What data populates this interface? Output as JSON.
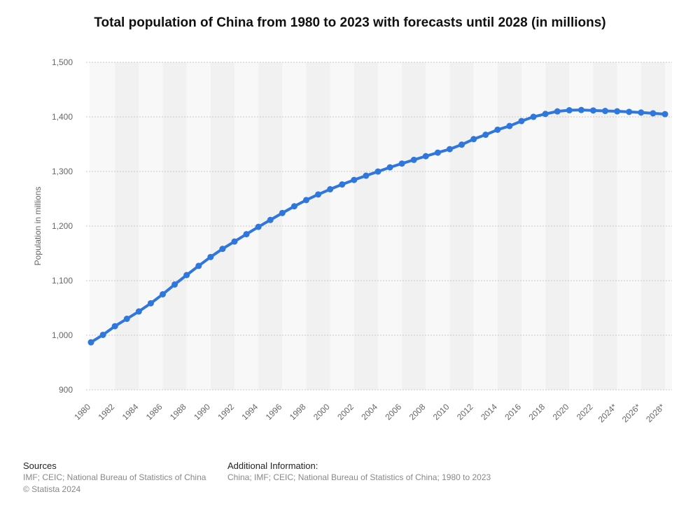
{
  "chart_data": {
    "type": "line",
    "title": "Total population of China from 1980 to 2023 with forecasts until 2028 (in millions)",
    "ylabel": "Population in millions",
    "xlabel": "",
    "ylim": [
      900,
      1500
    ],
    "yticks": [
      900,
      1000,
      1100,
      1200,
      1300,
      1400,
      1500
    ],
    "ytick_labels": [
      "900",
      "1,000",
      "1,100",
      "1,200",
      "1,300",
      "1,400",
      "1,500"
    ],
    "grid": true,
    "color": "#2f76dd",
    "categories": [
      "1980",
      "1981",
      "1982",
      "1983",
      "1984",
      "1985",
      "1986",
      "1987",
      "1988",
      "1989",
      "1990",
      "1991",
      "1992",
      "1993",
      "1994",
      "1995",
      "1996",
      "1997",
      "1998",
      "1999",
      "2000",
      "2001",
      "2002",
      "2003",
      "2004",
      "2005",
      "2006",
      "2007",
      "2008",
      "2009",
      "2010",
      "2011",
      "2012",
      "2013",
      "2014",
      "2015",
      "2016",
      "2017",
      "2018",
      "2019",
      "2020",
      "2021",
      "2022",
      "2023",
      "2024*",
      "2025*",
      "2026*",
      "2027*",
      "2028*"
    ],
    "series": [
      {
        "name": "Population in millions",
        "values": [
          987.05,
          1000.72,
          1016.54,
          1030.08,
          1043.57,
          1058.51,
          1075.07,
          1093.0,
          1110.26,
          1127.04,
          1143.33,
          1158.23,
          1171.71,
          1185.17,
          1198.5,
          1211.21,
          1223.89,
          1236.26,
          1247.61,
          1257.86,
          1267.43,
          1276.27,
          1284.53,
          1292.27,
          1299.88,
          1307.56,
          1314.48,
          1321.29,
          1328.02,
          1334.5,
          1340.91,
          1349.16,
          1359.22,
          1367.26,
          1376.46,
          1383.26,
          1392.32,
          1400.11,
          1405.41,
          1410.08,
          1412.12,
          1412.6,
          1411.75,
          1410.85,
          1410.2,
          1409.2,
          1408.0,
          1406.5,
          1405.0
        ]
      }
    ]
  },
  "footer": {
    "sources_heading": "Sources",
    "sources_text": "IMF; CEIC; National Bureau of Statistics of China",
    "copyright": "© Statista 2024",
    "additional_heading": "Additional Information:",
    "additional_text": "China; IMF; CEIC; National Bureau of Statistics of China; 1980 to 2023"
  }
}
